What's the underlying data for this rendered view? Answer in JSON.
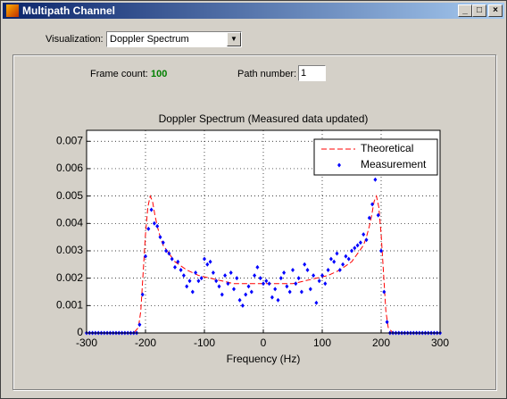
{
  "window": {
    "title": "Multipath Channel"
  },
  "controls": {
    "visualization_label": "Visualization:",
    "visualization_value": "Doppler Spectrum",
    "frame_count_label": "Frame count:",
    "frame_count_value": "100",
    "path_number_label": "Path number:",
    "path_number_value": "1"
  },
  "chart_data": {
    "type": "line",
    "title": "Doppler Spectrum (Measured data updated)",
    "xlabel": "Frequency (Hz)",
    "xlim": [
      -300,
      300
    ],
    "xticks": [
      -300,
      -200,
      -100,
      0,
      100,
      200,
      300
    ],
    "ylim": [
      0,
      0.0074
    ],
    "yticks": [
      0,
      0.001,
      0.002,
      0.003,
      0.004,
      0.005,
      0.006,
      0.007
    ],
    "grid": true,
    "legend": "upper right",
    "series": [
      {
        "name": "Theoretical",
        "color": "#ff0000",
        "style": "dashed",
        "x": [
          -300,
          -220,
          -212,
          -208,
          -204,
          -200,
          -196,
          -192,
          -188,
          -184,
          -180,
          -175,
          -170,
          -160,
          -150,
          -130,
          -110,
          -90,
          -70,
          -50,
          -30,
          -10,
          0,
          10,
          30,
          50,
          70,
          90,
          110,
          130,
          150,
          160,
          170,
          175,
          180,
          184,
          188,
          192,
          196,
          200,
          204,
          208,
          212,
          220,
          300
        ],
        "values": [
          0,
          0,
          0.0002,
          0.0008,
          0.0022,
          0.0036,
          0.0046,
          0.005,
          0.0048,
          0.0043,
          0.0039,
          0.0035,
          0.0032,
          0.0029,
          0.0026,
          0.0023,
          0.0021,
          0.002,
          0.0019,
          0.0018,
          0.0018,
          0.0018,
          0.0018,
          0.0018,
          0.0018,
          0.0018,
          0.0019,
          0.002,
          0.0021,
          0.0023,
          0.0026,
          0.0029,
          0.0032,
          0.0035,
          0.0039,
          0.0043,
          0.0048,
          0.005,
          0.0046,
          0.0036,
          0.0022,
          0.0008,
          0.0002,
          0,
          0
        ]
      },
      {
        "name": "Measurement",
        "color": "#0000ff",
        "style": "markers",
        "x": [
          -300,
          -295,
          -290,
          -285,
          -280,
          -275,
          -270,
          -265,
          -260,
          -255,
          -250,
          -245,
          -240,
          -235,
          -230,
          -225,
          -220,
          -215,
          -210,
          -205,
          -200,
          -195,
          -190,
          -185,
          -180,
          -175,
          -170,
          -165,
          -160,
          -155,
          -150,
          -145,
          -140,
          -135,
          -130,
          -125,
          -120,
          -115,
          -110,
          -105,
          -100,
          -95,
          -90,
          -85,
          -80,
          -75,
          -70,
          -65,
          -60,
          -55,
          -50,
          -45,
          -40,
          -35,
          -30,
          -25,
          -20,
          -15,
          -10,
          -5,
          0,
          5,
          10,
          15,
          20,
          25,
          30,
          35,
          40,
          45,
          50,
          55,
          60,
          65,
          70,
          75,
          80,
          85,
          90,
          95,
          100,
          105,
          110,
          115,
          120,
          125,
          130,
          135,
          140,
          145,
          150,
          155,
          160,
          165,
          170,
          175,
          180,
          185,
          190,
          195,
          200,
          205,
          210,
          215,
          220,
          225,
          230,
          235,
          240,
          245,
          250,
          255,
          260,
          265,
          270,
          275,
          280,
          285,
          290,
          295,
          300
        ],
        "values": [
          0,
          0,
          0,
          0,
          0,
          0,
          0,
          0,
          0,
          0,
          0,
          0,
          0,
          0,
          0,
          0,
          0,
          0,
          0.0003,
          0.0014,
          0.0028,
          0.0038,
          0.0045,
          0.004,
          0.0039,
          0.0035,
          0.0033,
          0.003,
          0.0029,
          0.0027,
          0.0024,
          0.0026,
          0.0023,
          0.0021,
          0.0017,
          0.0019,
          0.0015,
          0.0022,
          0.0019,
          0.002,
          0.0027,
          0.0025,
          0.0026,
          0.0022,
          0.0019,
          0.0017,
          0.0014,
          0.0021,
          0.0018,
          0.0022,
          0.0016,
          0.002,
          0.0012,
          0.001,
          0.0014,
          0.0017,
          0.0015,
          0.0021,
          0.0024,
          0.002,
          0.0018,
          0.0019,
          0.0018,
          0.0013,
          0.0016,
          0.0012,
          0.002,
          0.0022,
          0.0017,
          0.0015,
          0.0023,
          0.0018,
          0.002,
          0.0015,
          0.0025,
          0.0023,
          0.0016,
          0.0021,
          0.0011,
          0.0019,
          0.0021,
          0.0018,
          0.0023,
          0.0027,
          0.0026,
          0.0029,
          0.0023,
          0.0025,
          0.0028,
          0.0027,
          0.003,
          0.0031,
          0.0032,
          0.0033,
          0.0036,
          0.0034,
          0.0042,
          0.0047,
          0.0056,
          0.0043,
          0.003,
          0.0015,
          0.0004,
          0,
          0,
          0,
          0,
          0,
          0,
          0,
          0,
          0,
          0,
          0,
          0,
          0,
          0,
          0,
          0,
          0,
          0
        ]
      }
    ]
  }
}
